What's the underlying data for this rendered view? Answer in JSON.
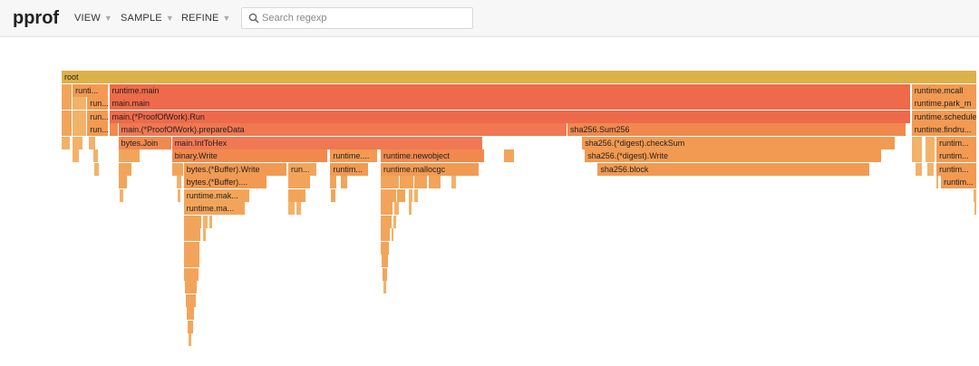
{
  "header": {
    "brand": "pprof",
    "menus": [
      {
        "label": "VIEW"
      },
      {
        "label": "SAMPLE"
      },
      {
        "label": "REFINE"
      }
    ],
    "search": {
      "placeholder": "Search regexp",
      "value": ""
    }
  },
  "colors": {
    "root": "#dcb148",
    "main_hot": "#ee6a4a",
    "prepare": "#f07852",
    "warm": "#f1894f",
    "mid": "#f29a52",
    "cool": "#f2a55a",
    "pale": "#f3b269"
  },
  "flame": {
    "rows": [
      [
        {
          "label": "root",
          "color": "root",
          "start": 0,
          "width": 1
        }
      ],
      [
        {
          "label": "",
          "color": "cool",
          "start": 0.0,
          "width": 0.012
        },
        {
          "label": "runti...",
          "color": "mid",
          "start": 0.012,
          "width": 0.04
        },
        {
          "label": "runtime.main",
          "color": "main_hot",
          "start": 0.052,
          "width": 0.876
        },
        {
          "label": "runtime.mcall",
          "color": "mid",
          "start": 0.9285,
          "width": 0.0715
        }
      ],
      [
        {
          "label": "",
          "color": "cool",
          "start": 0.0,
          "width": 0.012
        },
        {
          "label": "",
          "color": "pale",
          "start": 0.012,
          "width": 0.016
        },
        {
          "label": "run...",
          "color": "mid",
          "start": 0.028,
          "width": 0.024
        },
        {
          "label": "main.main",
          "color": "main_hot",
          "start": 0.052,
          "width": 0.876
        },
        {
          "label": "runtime.park_m",
          "color": "mid",
          "start": 0.9285,
          "width": 0.0715
        }
      ],
      [
        {
          "label": "",
          "color": "cool",
          "start": 0.0,
          "width": 0.012
        },
        {
          "label": "",
          "color": "pale",
          "start": 0.012,
          "width": 0.016
        },
        {
          "label": "run...",
          "color": "mid",
          "start": 0.028,
          "width": 0.024
        },
        {
          "label": "main.(*ProofOfWork).Run",
          "color": "main_hot",
          "start": 0.052,
          "width": 0.876
        },
        {
          "label": "runtime.schedule",
          "color": "mid",
          "start": 0.9285,
          "width": 0.0715
        }
      ],
      [
        {
          "label": "",
          "color": "cool",
          "start": 0.0,
          "width": 0.012
        },
        {
          "label": "",
          "color": "pale",
          "start": 0.012,
          "width": 0.016
        },
        {
          "label": "run...",
          "color": "mid",
          "start": 0.028,
          "width": 0.024
        },
        {
          "label": "",
          "color": "warm",
          "start": 0.052,
          "width": 0.01
        },
        {
          "label": "main.(*ProofOfWork).prepareData",
          "color": "prepare",
          "start": 0.062,
          "width": 0.4905
        },
        {
          "label": "sha256.Sum256",
          "color": "warm",
          "start": 0.5525,
          "width": 0.37
        },
        {
          "label": "runtime.findru...",
          "color": "mid",
          "start": 0.9285,
          "width": 0.0715
        }
      ],
      [
        {
          "label": "",
          "color": "pale",
          "start": 0.0,
          "width": 0.01
        },
        {
          "label": "",
          "color": "pale",
          "start": 0.012,
          "width": 0.012
        },
        {
          "label": "",
          "color": "pale",
          "start": 0.03,
          "width": 0.008
        },
        {
          "label": "bytes.Join",
          "color": "warm",
          "start": 0.062,
          "width": 0.0585
        },
        {
          "label": "main.IntToHex",
          "color": "prepare",
          "start": 0.1205,
          "width": 0.34
        },
        {
          "label": "sha256.(*digest).checkSum",
          "color": "mid",
          "start": 0.5685,
          "width": 0.342
        },
        {
          "label": "",
          "color": "pale",
          "start": 0.9285,
          "width": 0.012
        },
        {
          "label": "",
          "color": "pale",
          "start": 0.9435,
          "width": 0.011
        },
        {
          "label": "runtim...",
          "color": "mid",
          "start": 0.9555,
          "width": 0.0445
        }
      ],
      [
        {
          "label": "",
          "color": "pale",
          "start": 0.012,
          "width": 0.008
        },
        {
          "label": "",
          "color": "pale",
          "start": 0.035,
          "width": 0.006
        },
        {
          "label": "",
          "color": "cool",
          "start": 0.062,
          "width": 0.024
        },
        {
          "label": "binary.Write",
          "color": "warm",
          "start": 0.1205,
          "width": 0.171
        },
        {
          "label": "runtime....",
          "color": "mid",
          "start": 0.2935,
          "width": 0.0525
        },
        {
          "label": "runtime.newobject",
          "color": "warm",
          "start": 0.3485,
          "width": 0.114
        },
        {
          "label": "",
          "color": "cool",
          "start": 0.4835,
          "width": 0.012
        },
        {
          "label": "sha256.(*digest).Write",
          "color": "mid",
          "start": 0.5715,
          "width": 0.325
        },
        {
          "label": "",
          "color": "pale",
          "start": 0.9285,
          "width": 0.012
        },
        {
          "label": "",
          "color": "pale",
          "start": 0.9435,
          "width": 0.011
        },
        {
          "label": "runtim...",
          "color": "mid",
          "start": 0.9555,
          "width": 0.0445
        }
      ],
      [
        {
          "label": "",
          "color": "pale",
          "start": 0.036,
          "width": 0.006
        },
        {
          "label": "",
          "color": "cool",
          "start": 0.062,
          "width": 0.015
        },
        {
          "label": "",
          "color": "cool",
          "start": 0.1205,
          "width": 0.013
        },
        {
          "label": "bytes.(*Buffer).Write",
          "color": "mid",
          "start": 0.1335,
          "width": 0.113
        },
        {
          "label": "run...",
          "color": "cool",
          "start": 0.2475,
          "width": 0.0315
        },
        {
          "label": "runtim...",
          "color": "mid",
          "start": 0.2935,
          "width": 0.0425
        },
        {
          "label": "runtime.mallocgc",
          "color": "mid",
          "start": 0.3485,
          "width": 0.108
        },
        {
          "label": "sha256.block",
          "color": "mid",
          "start": 0.5855,
          "width": 0.298
        },
        {
          "label": "",
          "color": "pale",
          "start": 0.9325,
          "width": 0.008
        },
        {
          "label": "",
          "color": "pale",
          "start": 0.9455,
          "width": 0.008
        },
        {
          "label": "runtim...",
          "color": "mid",
          "start": 0.9555,
          "width": 0.0445
        }
      ],
      [
        {
          "label": "",
          "color": "cool",
          "start": 0.062,
          "width": 0.01
        },
        {
          "label": "",
          "color": "pale",
          "start": 0.1255,
          "width": 0.006
        },
        {
          "label": "bytes.(*Buffer)....",
          "color": "mid",
          "start": 0.1335,
          "width": 0.091
        },
        {
          "label": "",
          "color": "cool",
          "start": 0.2475,
          "width": 0.025
        },
        {
          "label": "",
          "color": "cool",
          "start": 0.2935,
          "width": 0.008
        },
        {
          "label": "",
          "color": "cool",
          "start": 0.3045,
          "width": 0.008
        },
        {
          "label": "",
          "color": "cool",
          "start": 0.3485,
          "width": 0.021
        },
        {
          "label": "",
          "color": "cool",
          "start": 0.3695,
          "width": 0.016
        },
        {
          "label": "",
          "color": "cool",
          "start": 0.3855,
          "width": 0.015
        },
        {
          "label": "",
          "color": "cool",
          "start": 0.4005,
          "width": 0.014
        },
        {
          "label": "",
          "color": "pale",
          "start": 0.4255,
          "width": 0.006
        },
        {
          "label": "",
          "color": "pale",
          "start": 0.9555,
          "width": 0.003
        },
        {
          "label": "runtim...",
          "color": "mid",
          "start": 0.9605,
          "width": 0.0395
        }
      ],
      [
        {
          "label": "",
          "color": "pale",
          "start": 0.063,
          "width": 0.005
        },
        {
          "label": "",
          "color": "pale",
          "start": 0.1265,
          "width": 0.004
        },
        {
          "label": "runtime.mak...",
          "color": "cool",
          "start": 0.1335,
          "width": 0.073
        },
        {
          "label": "",
          "color": "cool",
          "start": 0.2475,
          "width": 0.02
        },
        {
          "label": "",
          "color": "cool",
          "start": 0.2945,
          "width": 0.006
        },
        {
          "label": "",
          "color": "cool",
          "start": 0.3485,
          "width": 0.018
        },
        {
          "label": "",
          "color": "cool",
          "start": 0.3665,
          "width": 0.01
        },
        {
          "label": "",
          "color": "pale",
          "start": 0.3795,
          "width": 0.005
        },
        {
          "label": "",
          "color": "pale",
          "start": 0.3855,
          "width": 0.005
        },
        {
          "label": "",
          "color": "pale",
          "start": 0.9955,
          "width": 0.004
        }
      ],
      [
        {
          "label": "runtime.ma...",
          "color": "cool",
          "start": 0.1335,
          "width": 0.068
        },
        {
          "label": "",
          "color": "pale",
          "start": 0.2475,
          "width": 0.008
        },
        {
          "label": "",
          "color": "pale",
          "start": 0.2565,
          "width": 0.006
        },
        {
          "label": "",
          "color": "cool",
          "start": 0.3485,
          "width": 0.014
        },
        {
          "label": "",
          "color": "pale",
          "start": 0.3635,
          "width": 0.006
        },
        {
          "label": "",
          "color": "pale",
          "start": 0.3795,
          "width": 0.004
        },
        {
          "label": "",
          "color": "pale",
          "start": 0.9965,
          "width": 0.003
        }
      ],
      [
        {
          "label": "",
          "color": "cool",
          "start": 0.1335,
          "width": 0.02
        },
        {
          "label": "",
          "color": "pale",
          "start": 0.1545,
          "width": 0.006
        },
        {
          "label": "",
          "color": "pale",
          "start": 0.1615,
          "width": 0.004
        },
        {
          "label": "",
          "color": "cool",
          "start": 0.3485,
          "width": 0.013
        },
        {
          "label": "",
          "color": "pale",
          "start": 0.3625,
          "width": 0.004
        }
      ],
      [
        {
          "label": "",
          "color": "cool",
          "start": 0.1335,
          "width": 0.019
        },
        {
          "label": "",
          "color": "pale",
          "start": 0.1545,
          "width": 0.004
        },
        {
          "label": "",
          "color": "cool",
          "start": 0.3485,
          "width": 0.011
        },
        {
          "label": "",
          "color": "pale",
          "start": 0.3605,
          "width": 0.003
        }
      ],
      [
        {
          "label": "",
          "color": "cool",
          "start": 0.1335,
          "width": 0.018
        },
        {
          "label": "",
          "color": "cool",
          "start": 0.3485,
          "width": 0.01
        }
      ],
      [
        {
          "label": "",
          "color": "cool",
          "start": 0.1335,
          "width": 0.018
        },
        {
          "label": "",
          "color": "cool",
          "start": 0.3495,
          "width": 0.008
        }
      ],
      [
        {
          "label": "",
          "color": "cool",
          "start": 0.1335,
          "width": 0.017
        },
        {
          "label": "",
          "color": "cool",
          "start": 0.3505,
          "width": 0.006
        }
      ],
      [
        {
          "label": "",
          "color": "cool",
          "start": 0.1345,
          "width": 0.014
        },
        {
          "label": "",
          "color": "pale",
          "start": 0.3515,
          "width": 0.004
        }
      ],
      [
        {
          "label": "",
          "color": "cool",
          "start": 0.1355,
          "width": 0.012
        }
      ],
      [
        {
          "label": "",
          "color": "cool",
          "start": 0.1365,
          "width": 0.009
        }
      ],
      [
        {
          "label": "",
          "color": "cool",
          "start": 0.1375,
          "width": 0.007
        }
      ],
      [
        {
          "label": "",
          "color": "pale",
          "start": 0.1385,
          "width": 0.004
        }
      ]
    ]
  }
}
